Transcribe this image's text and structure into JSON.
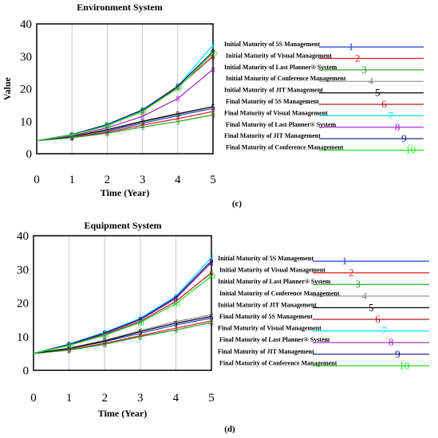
{
  "chart_data": [
    {
      "type": "line",
      "title": "Environment System",
      "xlabel": "Time (Year)",
      "ylabel": "Value",
      "panel_label": "(c)",
      "x": [
        0,
        1,
        2,
        3,
        4,
        5
      ],
      "xlim": [
        0,
        5
      ],
      "ylim": [
        0,
        40
      ],
      "xticks": [
        "0",
        "1",
        "2",
        "3",
        "4",
        "5"
      ],
      "yticks": [
        "0",
        "10",
        "20",
        "30",
        "40"
      ],
      "grid": "vertical",
      "legend_position": "right",
      "series": [
        {
          "name": "Initial Maturity of 5S Management",
          "marker": "1",
          "color": "#1f3fd6",
          "values": [
            4,
            5.2,
            7,
            9.4,
            11.7,
            14
          ]
        },
        {
          "name": "Initial Maturity of Visual Management",
          "marker": "2",
          "color": "#e02020",
          "values": [
            4,
            5.1,
            6.6,
            8.8,
            10.8,
            13
          ]
        },
        {
          "name": "Initial Maturity of Last Planner® System",
          "marker": "3",
          "color": "#1e9e1e",
          "values": [
            4,
            4.9,
            6.3,
            8.2,
            9.9,
            12
          ]
        },
        {
          "name": "Initial Maturity of Conference Management",
          "marker": "4",
          "color": "#8c8c8c",
          "values": [
            4,
            5.2,
            7.2,
            9.8,
            12.1,
            14.5
          ]
        },
        {
          "name": "Initial Maturity of JIT Management",
          "marker": "5",
          "color": "#000000",
          "values": [
            4,
            5.3,
            7.4,
            10,
            12.3,
            14.5
          ]
        },
        {
          "name": "Final Maturity of 5S Management",
          "marker": "6",
          "color": "#b01818",
          "values": [
            4,
            5.8,
            8.8,
            13.2,
            20.5,
            30
          ]
        },
        {
          "name": "Final Maturity of Visual Management",
          "marker": "7",
          "color": "#00e5ff",
          "values": [
            4,
            5.8,
            8.8,
            13.4,
            20.8,
            33.5
          ]
        },
        {
          "name": "Final Maturity of Last Planner® System",
          "marker": "8",
          "color": "#a020c0",
          "values": [
            4,
            5.5,
            8,
            11.5,
            17,
            26
          ]
        },
        {
          "name": "Final Maturity of JIT Management",
          "marker": "9",
          "color": "#10127a",
          "values": [
            4,
            5.9,
            9,
            13.5,
            20.8,
            31.5
          ]
        },
        {
          "name": "Final Maturity of Conference Management",
          "marker": "10",
          "color": "#22e022",
          "values": [
            4,
            5.8,
            8.6,
            13,
            20.2,
            31
          ]
        }
      ]
    },
    {
      "type": "line",
      "title": "Equipment System",
      "xlabel": "Time (Year)",
      "ylabel": "",
      "panel_label": "(d)",
      "x": [
        0,
        1,
        2,
        3,
        4,
        5
      ],
      "xlim": [
        0,
        5
      ],
      "ylim": [
        0,
        40
      ],
      "xticks": [
        "0",
        "1",
        "2",
        "3",
        "4",
        "5"
      ],
      "yticks": [
        "0",
        "10",
        "20",
        "30",
        "40"
      ],
      "grid": "vertical",
      "legend_position": "right",
      "series": [
        {
          "name": "Initial Maturity of 5S Management",
          "marker": "1",
          "color": "#1f3fd6",
          "values": [
            5,
            6.5,
            8.5,
            11,
            13.5,
            15.5
          ]
        },
        {
          "name": "Initial Maturity of Visual Management",
          "marker": "2",
          "color": "#e02020",
          "values": [
            5,
            6.2,
            8,
            10.3,
            12.5,
            14.7
          ]
        },
        {
          "name": "Initial Maturity of Last Planner® System",
          "marker": "3",
          "color": "#1e9e1e",
          "values": [
            5,
            6,
            7.7,
            10,
            12,
            14.2
          ]
        },
        {
          "name": "Initial Maturity of Conference Management",
          "marker": "4",
          "color": "#8c8c8c",
          "values": [
            5,
            6.6,
            8.9,
            11.8,
            14.5,
            16.5
          ]
        },
        {
          "name": "Initial Maturity of JIT Management",
          "marker": "5",
          "color": "#000000",
          "values": [
            5,
            6.5,
            8.7,
            11.5,
            14,
            16
          ]
        },
        {
          "name": "Final Maturity of 5S Management",
          "marker": "6",
          "color": "#b01818",
          "values": [
            5,
            7.5,
            10.6,
            14.5,
            20.5,
            29
          ]
        },
        {
          "name": "Final Maturity of Visual Management",
          "marker": "7",
          "color": "#00e5ff",
          "values": [
            5,
            7.8,
            11.3,
            15.5,
            22,
            33.5
          ]
        },
        {
          "name": "Final Maturity of Last Planner® System",
          "marker": "8",
          "color": "#a020c0",
          "values": [
            5,
            7.6,
            10.9,
            15,
            21.3,
            32
          ]
        },
        {
          "name": "Final Maturity of JIT Management",
          "marker": "9",
          "color": "#10127a",
          "values": [
            5,
            7.7,
            11.1,
            15.2,
            21.7,
            32.5
          ]
        },
        {
          "name": "Final Maturity of Conference Management",
          "marker": "10",
          "color": "#22e022",
          "values": [
            5,
            7.4,
            10.4,
            14.2,
            19.8,
            28
          ]
        }
      ]
    }
  ]
}
